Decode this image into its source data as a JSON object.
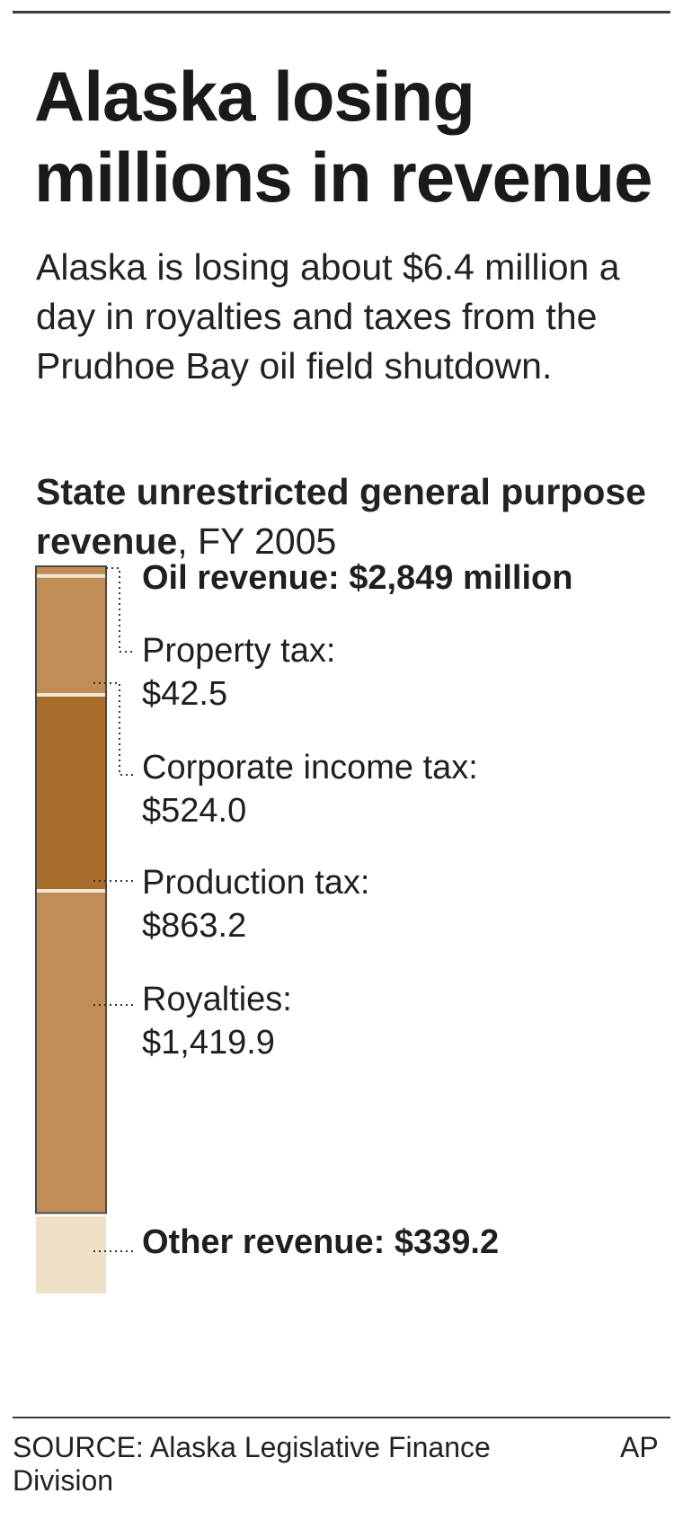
{
  "headline": "Alaska losing millions in revenue",
  "intro": "Alaska is losing about $6.4 million a day in royalties and taxes from the Prudhoe Bay oil field shutdown.",
  "chart_title_bold": "State unrestricted general purpose revenue",
  "chart_title_rest": ", FY 2005",
  "source": "SOURCE: Alaska Legislative Finance Division",
  "credit": "AP",
  "chart_data": {
    "type": "bar",
    "subtype": "stacked-column",
    "unit": "million dollars",
    "group_total": {
      "name": "Oil revenue",
      "value": 2849,
      "label_prefix": "Oil revenue: ",
      "label_value": "$2,849 million"
    },
    "segments": [
      {
        "name": "Property tax",
        "value": 42.5,
        "label_name": "Property tax:",
        "label_value": "$42.5",
        "group": "oil",
        "color": "#c08d57"
      },
      {
        "name": "Corporate income tax",
        "value": 524.0,
        "label_name": "Corporate income tax:",
        "label_value": "$524.0",
        "group": "oil",
        "color": "#c08d57"
      },
      {
        "name": "Production tax",
        "value": 863.2,
        "label_name": "Production tax:",
        "label_value": "$863.2",
        "group": "oil",
        "color": "#a86d2a"
      },
      {
        "name": "Royalties",
        "value": 1419.9,
        "label_name": "Royalties:",
        "label_value": "$1,419.9",
        "group": "oil",
        "color": "#c08d57"
      },
      {
        "name": "Other revenue",
        "value": 339.2,
        "label_name": "Other revenue: ",
        "label_value": "$339.2",
        "group": "other",
        "color": "#efe0c8"
      }
    ],
    "separator_color": "#f4e7d2",
    "outline_color": "#4a4a4a",
    "leader_color": "#333333"
  }
}
